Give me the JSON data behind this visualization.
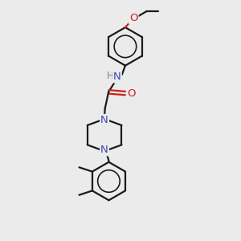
{
  "background_color": "#ebebeb",
  "bond_color": "#1a1a1a",
  "nitrogen_color": "#4444bb",
  "oxygen_color": "#cc2020",
  "h_color": "#6a8a8a",
  "bond_width": 1.6,
  "figsize": [
    3.0,
    3.0
  ],
  "dpi": 100,
  "xlim": [
    0,
    10
  ],
  "ylim": [
    0,
    10
  ]
}
